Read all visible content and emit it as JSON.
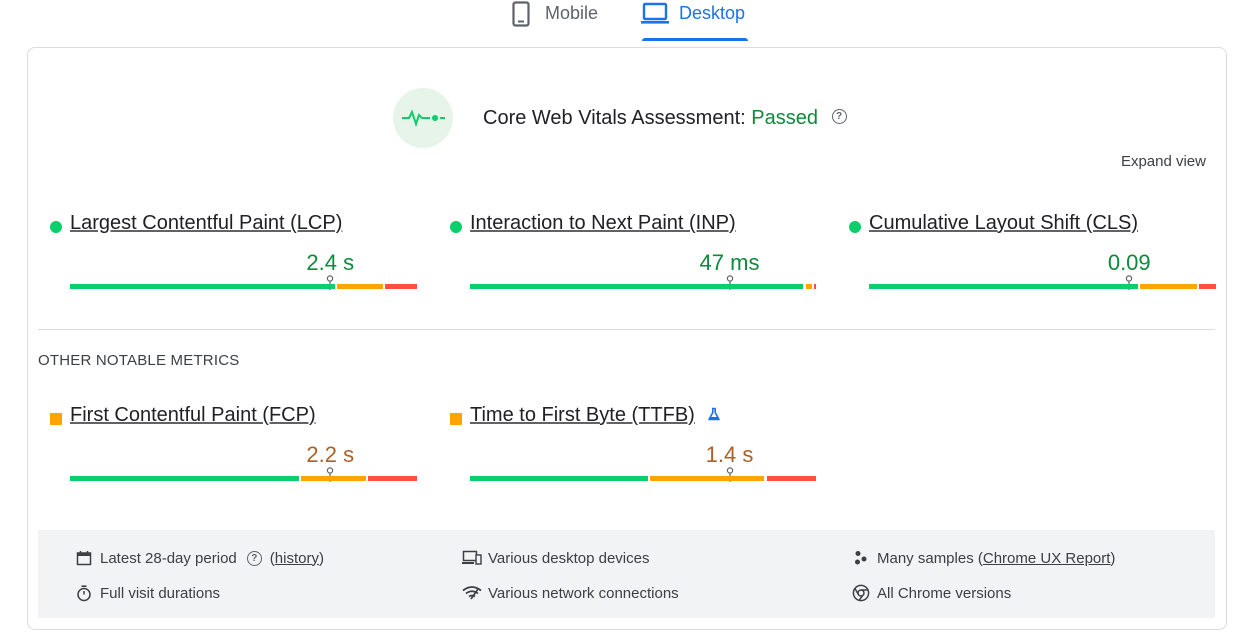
{
  "tabs": [
    {
      "label": "Mobile",
      "icon": "phone-icon",
      "selected": false
    },
    {
      "label": "Desktop",
      "icon": "laptop-icon",
      "selected": true
    }
  ],
  "assessment": {
    "title": "Core Web Vitals Assessment:",
    "status": "Passed",
    "help": "?",
    "expand_label": "Expand view"
  },
  "core_metrics": [
    {
      "name": "Largest Contentful Paint (LCP)",
      "value": "2.4 s",
      "rating": "good",
      "marker_fraction": 0.75
    },
    {
      "name": "Interaction to Next Paint (INP)",
      "value": "47 ms",
      "rating": "good",
      "marker_fraction": 0.75
    },
    {
      "name": "Cumulative Layout Shift (CLS)",
      "value": "0.09",
      "rating": "good",
      "marker_fraction": 0.75
    }
  ],
  "other_title": "OTHER NOTABLE METRICS",
  "other_metrics": [
    {
      "name": "First Contentful Paint (FCP)",
      "value": "2.2 s",
      "rating": "average",
      "marker_fraction": 0.75
    },
    {
      "name": "Time to First Byte (TTFB)",
      "value": "1.4 s",
      "rating": "average",
      "marker_fraction": 0.75,
      "experimental": true
    }
  ],
  "footer": {
    "period": "Latest 28-day period",
    "history_open": "(",
    "history_link": "history",
    "history_close": ")",
    "devices": "Various desktop devices",
    "samples_prefix": "Many samples (",
    "samples_link": "Chrome UX Report",
    "samples_suffix": ")",
    "durations": "Full visit durations",
    "network": "Various network connections",
    "versions": "All Chrome versions"
  },
  "colors": {
    "accent": "#1a73e8",
    "good": "#0cce6b",
    "average": "#ffa400",
    "poor": "#ff4e42",
    "good_text": "#0d8a3c",
    "average_text": "#a8622a"
  }
}
